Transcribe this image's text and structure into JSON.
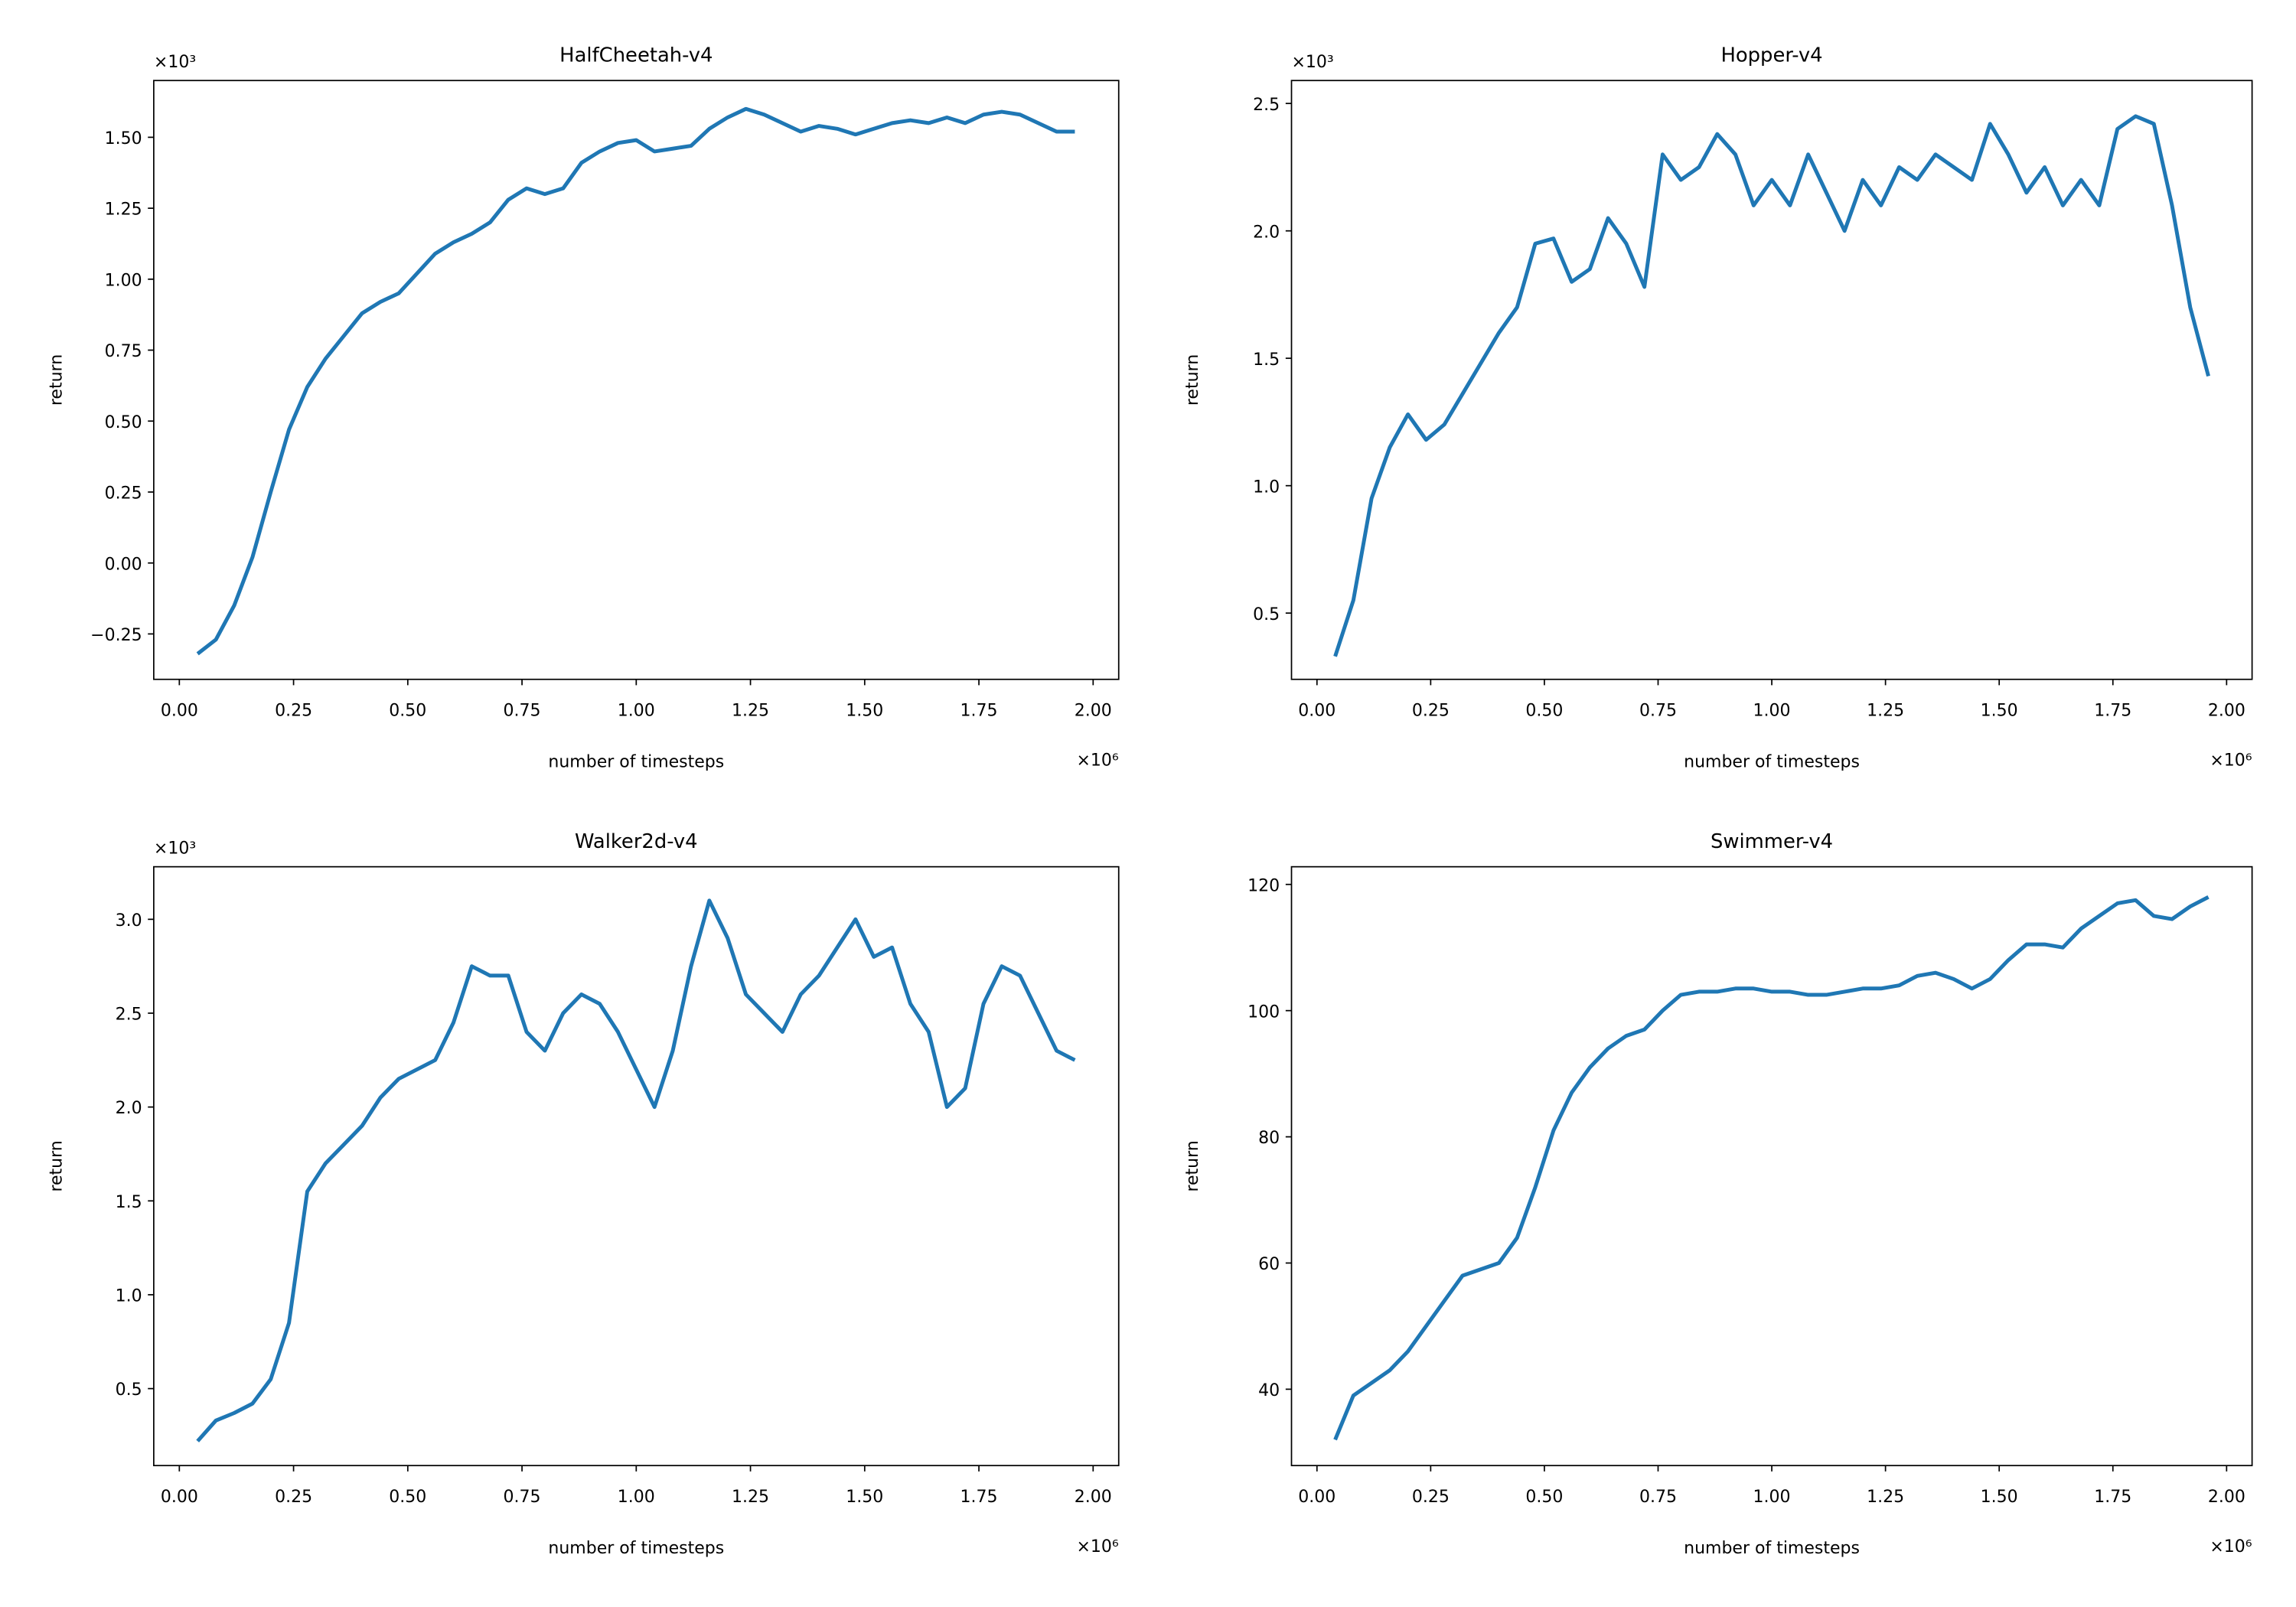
{
  "chart_data": [
    {
      "type": "line",
      "title": "HalfCheetah-v4",
      "xlabel": "number of timesteps",
      "ylabel": "return",
      "x_offset_label": "×10⁶",
      "y_offset_label": "×10³",
      "color": "#1f77b4",
      "x": [
        0.04,
        0.08,
        0.12,
        0.16,
        0.2,
        0.24,
        0.28,
        0.32,
        0.36,
        0.4,
        0.44,
        0.48,
        0.52,
        0.56,
        0.6,
        0.64,
        0.68,
        0.72,
        0.76,
        0.8,
        0.84,
        0.88,
        0.92,
        0.96,
        1.0,
        1.04,
        1.08,
        1.12,
        1.16,
        1.2,
        1.24,
        1.28,
        1.32,
        1.36,
        1.4,
        1.44,
        1.48,
        1.52,
        1.56,
        1.6,
        1.64,
        1.68,
        1.72,
        1.76,
        1.8,
        1.84,
        1.88,
        1.92,
        1.96
      ],
      "values": [
        -0.32,
        -0.27,
        -0.15,
        0.02,
        0.25,
        0.47,
        0.62,
        0.72,
        0.8,
        0.88,
        0.92,
        0.95,
        1.02,
        1.09,
        1.13,
        1.16,
        1.2,
        1.28,
        1.32,
        1.3,
        1.32,
        1.41,
        1.45,
        1.48,
        1.49,
        1.45,
        1.46,
        1.47,
        1.53,
        1.57,
        1.6,
        1.58,
        1.55,
        1.52,
        1.54,
        1.53,
        1.51,
        1.53,
        1.55,
        1.56,
        1.55,
        1.57,
        1.55,
        1.58,
        1.59,
        1.58,
        1.55,
        1.52,
        1.52
      ],
      "xlim": [
        -0.056,
        2.056
      ],
      "ylim": [
        -0.41,
        1.7
      ],
      "xticks": [
        {
          "value": 0,
          "label": "0.00"
        },
        0.25,
        {
          "value": 0.5,
          "label": "0.50"
        },
        0.75,
        {
          "value": 1,
          "label": "1.00"
        },
        1.25,
        {
          "value": 1.5,
          "label": "1.50"
        },
        1.75,
        {
          "value": 2,
          "label": "2.00"
        }
      ],
      "yticks": [
        {
          "value": -0.25,
          "label": "−0.25"
        },
        {
          "value": 0,
          "label": "0.00"
        },
        0.25,
        {
          "value": 0.5,
          "label": "0.50"
        },
        0.75,
        {
          "value": 1,
          "label": "1.00"
        },
        1.25,
        {
          "value": 1.5,
          "label": "1.50"
        }
      ]
    },
    {
      "type": "line",
      "title": "Hopper-v4",
      "xlabel": "number of timesteps",
      "ylabel": "return",
      "x_offset_label": "×10⁶",
      "y_offset_label": "×10³",
      "color": "#1f77b4",
      "x": [
        0.04,
        0.08,
        0.12,
        0.16,
        0.2,
        0.24,
        0.28,
        0.32,
        0.36,
        0.4,
        0.44,
        0.48,
        0.52,
        0.56,
        0.6,
        0.64,
        0.68,
        0.72,
        0.76,
        0.8,
        0.84,
        0.88,
        0.92,
        0.96,
        1.0,
        1.04,
        1.08,
        1.12,
        1.16,
        1.2,
        1.24,
        1.28,
        1.32,
        1.36,
        1.4,
        1.44,
        1.48,
        1.52,
        1.56,
        1.6,
        1.64,
        1.68,
        1.72,
        1.76,
        1.8,
        1.84,
        1.88,
        1.92,
        1.96
      ],
      "values": [
        0.33,
        0.55,
        0.95,
        1.15,
        1.28,
        1.18,
        1.24,
        1.36,
        1.48,
        1.6,
        1.7,
        1.95,
        1.97,
        1.8,
        1.85,
        2.05,
        1.95,
        1.78,
        2.3,
        2.2,
        2.25,
        2.38,
        2.3,
        2.1,
        2.2,
        2.1,
        2.3,
        2.15,
        2.0,
        2.2,
        2.1,
        2.25,
        2.2,
        2.3,
        2.25,
        2.2,
        2.42,
        2.3,
        2.15,
        2.25,
        2.1,
        2.2,
        2.1,
        2.4,
        2.45,
        2.42,
        2.1,
        1.7,
        1.43
      ],
      "xlim": [
        -0.056,
        2.056
      ],
      "ylim": [
        0.24,
        2.59
      ],
      "xticks": [
        {
          "value": 0,
          "label": "0.00"
        },
        0.25,
        {
          "value": 0.5,
          "label": "0.50"
        },
        0.75,
        {
          "value": 1,
          "label": "1.00"
        },
        1.25,
        {
          "value": 1.5,
          "label": "1.50"
        },
        1.75,
        {
          "value": 2,
          "label": "2.00"
        }
      ],
      "yticks": [
        0.5,
        {
          "value": 1,
          "label": "1.0"
        },
        1.5,
        {
          "value": 2,
          "label": "2.0"
        },
        2.5
      ]
    },
    {
      "type": "line",
      "title": "Walker2d-v4",
      "xlabel": "number of timesteps",
      "ylabel": "return",
      "x_offset_label": "×10⁶",
      "y_offset_label": "×10³",
      "color": "#1f77b4",
      "x": [
        0.04,
        0.08,
        0.12,
        0.16,
        0.2,
        0.24,
        0.28,
        0.32,
        0.36,
        0.4,
        0.44,
        0.48,
        0.52,
        0.56,
        0.6,
        0.64,
        0.68,
        0.72,
        0.76,
        0.8,
        0.84,
        0.88,
        0.92,
        0.96,
        1.0,
        1.04,
        1.08,
        1.12,
        1.16,
        1.2,
        1.24,
        1.28,
        1.32,
        1.36,
        1.4,
        1.44,
        1.48,
        1.52,
        1.56,
        1.6,
        1.64,
        1.68,
        1.72,
        1.76,
        1.8,
        1.84,
        1.88,
        1.92,
        1.96
      ],
      "values": [
        0.22,
        0.33,
        0.37,
        0.42,
        0.55,
        0.85,
        1.55,
        1.7,
        1.8,
        1.9,
        2.05,
        2.15,
        2.2,
        2.25,
        2.45,
        2.75,
        2.7,
        2.7,
        2.4,
        2.3,
        2.5,
        2.6,
        2.55,
        2.4,
        2.2,
        2.0,
        2.3,
        2.75,
        3.1,
        2.9,
        2.6,
        2.5,
        2.4,
        2.6,
        2.7,
        2.85,
        3.0,
        2.8,
        2.85,
        2.55,
        2.4,
        2.0,
        2.1,
        2.55,
        2.75,
        2.7,
        2.5,
        2.3,
        2.25
      ],
      "xlim": [
        -0.056,
        2.056
      ],
      "ylim": [
        0.09,
        3.28
      ],
      "xticks": [
        {
          "value": 0,
          "label": "0.00"
        },
        0.25,
        {
          "value": 0.5,
          "label": "0.50"
        },
        0.75,
        {
          "value": 1,
          "label": "1.00"
        },
        1.25,
        {
          "value": 1.5,
          "label": "1.50"
        },
        1.75,
        {
          "value": 2,
          "label": "2.00"
        }
      ],
      "yticks": [
        0.5,
        {
          "value": 1,
          "label": "1.0"
        },
        1.5,
        {
          "value": 2,
          "label": "2.0"
        },
        2.5,
        {
          "value": 3,
          "label": "3.0"
        }
      ]
    },
    {
      "type": "line",
      "title": "Swimmer-v4",
      "xlabel": "number of timesteps",
      "ylabel": "return",
      "x_offset_label": "×10⁶",
      "color": "#1f77b4",
      "x": [
        0.04,
        0.08,
        0.12,
        0.16,
        0.2,
        0.24,
        0.28,
        0.32,
        0.36,
        0.4,
        0.44,
        0.48,
        0.52,
        0.56,
        0.6,
        0.64,
        0.68,
        0.72,
        0.76,
        0.8,
        0.84,
        0.88,
        0.92,
        0.96,
        1.0,
        1.04,
        1.08,
        1.12,
        1.16,
        1.2,
        1.24,
        1.28,
        1.32,
        1.36,
        1.4,
        1.44,
        1.48,
        1.52,
        1.56,
        1.6,
        1.64,
        1.68,
        1.72,
        1.76,
        1.8,
        1.84,
        1.88,
        1.92,
        1.96
      ],
      "values": [
        32,
        39,
        41,
        43,
        46,
        50,
        54,
        58,
        59,
        60,
        64,
        72,
        81,
        87,
        91,
        94,
        96,
        97,
        100,
        102.5,
        103,
        103,
        103.5,
        103.5,
        103,
        103,
        102.5,
        102.5,
        103,
        103.5,
        103.5,
        104,
        105.5,
        106,
        105,
        103.5,
        105,
        108,
        110.5,
        110.5,
        110,
        113,
        115,
        117,
        117.5,
        115,
        114.5,
        116.5,
        118
      ],
      "xlim": [
        -0.056,
        2.056
      ],
      "ylim": [
        27.9,
        122.8
      ],
      "xticks": [
        {
          "value": 0,
          "label": "0.00"
        },
        0.25,
        {
          "value": 0.5,
          "label": "0.50"
        },
        0.75,
        {
          "value": 1,
          "label": "1.00"
        },
        1.25,
        {
          "value": 1.5,
          "label": "1.50"
        },
        1.75,
        {
          "value": 2,
          "label": "2.00"
        }
      ],
      "yticks": [
        40,
        60,
        80,
        100,
        120
      ]
    }
  ]
}
